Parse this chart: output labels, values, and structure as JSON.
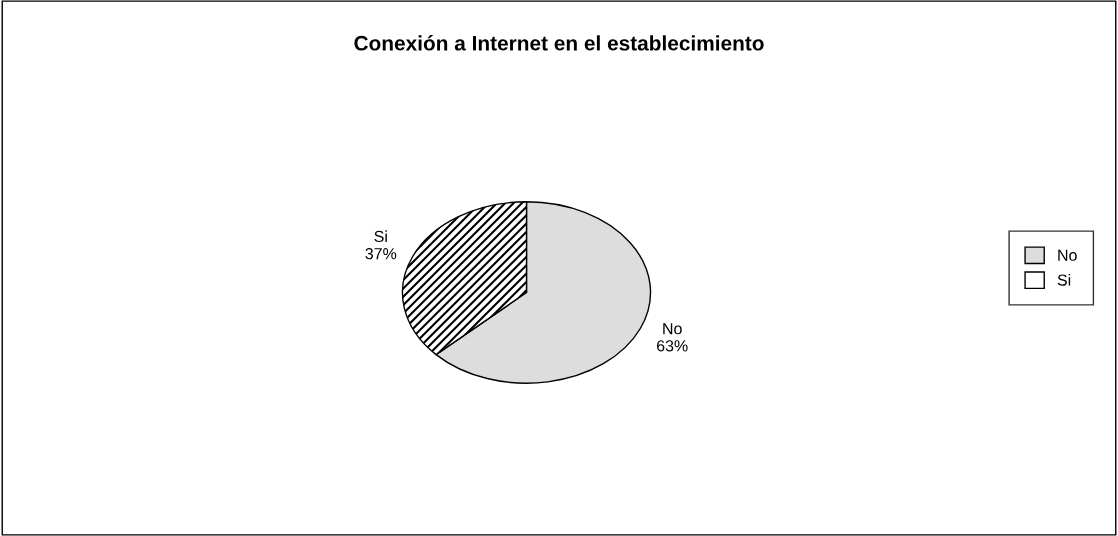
{
  "chart_data": {
    "type": "pie",
    "title": "Conexión a Internet en el establecimiento",
    "categories": [
      "No",
      "Si"
    ],
    "values": [
      63,
      37
    ],
    "value_labels": [
      "63%",
      "37%"
    ],
    "colors": [
      "#dddddd",
      "#ffffff"
    ],
    "legend": "right"
  }
}
